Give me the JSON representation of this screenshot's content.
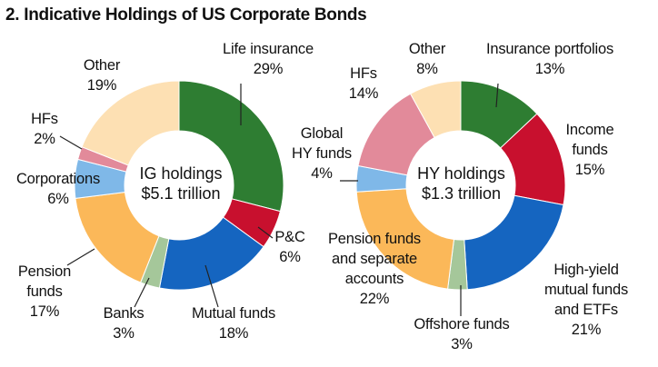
{
  "figure": {
    "title": "2. Indicative Holdings of US Corporate Bonds"
  },
  "chart_data": [
    {
      "type": "pie",
      "variant": "donut",
      "center_label": [
        "IG holdings",
        "$5.1 trillion"
      ],
      "slices": [
        {
          "label": "Life insurance",
          "value": 29,
          "value_label": "29%",
          "color": "#2e7d32"
        },
        {
          "label": "P&C",
          "value": 6,
          "value_label": "6%",
          "color": "#c8102e"
        },
        {
          "label": "Mutual funds",
          "value": 18,
          "value_label": "18%",
          "color": "#1565c0"
        },
        {
          "label": "Banks",
          "value": 3,
          "value_label": "3%",
          "color": "#a5c79a"
        },
        {
          "label": "Pension funds",
          "value": 17,
          "value_label": "17%",
          "color": "#fbb859"
        },
        {
          "label": "Corporations",
          "value": 6,
          "value_label": "6%",
          "color": "#7fb8e8"
        },
        {
          "label": "HFs",
          "value": 2,
          "value_label": "2%",
          "color": "#e28a9a"
        },
        {
          "label": "Other",
          "value": 19,
          "value_label": "19%",
          "color": "#fde0b3"
        }
      ]
    },
    {
      "type": "pie",
      "variant": "donut",
      "center_label": [
        "HY holdings",
        "$1.3 trillion"
      ],
      "slices": [
        {
          "label": "Insurance portfolios",
          "value": 13,
          "value_label": "13%",
          "color": "#2e7d32"
        },
        {
          "label": "Income funds",
          "value": 15,
          "value_label": "15%",
          "color": "#c8102e"
        },
        {
          "label": "High-yield mutual funds and ETFs",
          "value": 21,
          "value_label": "21%",
          "color": "#1565c0"
        },
        {
          "label": "Offshore funds",
          "value": 3,
          "value_label": "3%",
          "color": "#a5c79a"
        },
        {
          "label": "Pension funds and separate accounts",
          "value": 22,
          "value_label": "22%",
          "color": "#fbb859"
        },
        {
          "label": "Global HY funds",
          "value": 4,
          "value_label": "4%",
          "color": "#7fb8e8"
        },
        {
          "label": "HFs",
          "value": 14,
          "value_label": "14%",
          "color": "#e28a9a"
        },
        {
          "label": "Other",
          "value": 8,
          "value_label": "8%",
          "color": "#fde0b3"
        }
      ]
    }
  ]
}
